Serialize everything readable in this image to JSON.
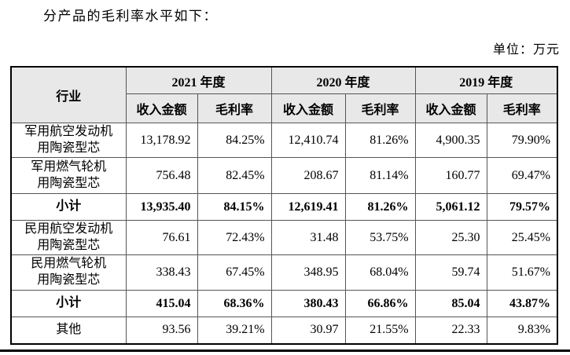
{
  "page": {
    "title": "分产品的毛利率水平如下：",
    "unit_label": "单位：万元"
  },
  "table": {
    "industry_header": "行业",
    "year_groups": [
      {
        "label": "2021 年度"
      },
      {
        "label": "2020 年度"
      },
      {
        "label": "2019 年度"
      }
    ],
    "sub_headers": [
      "收入金额",
      "毛利率"
    ],
    "rows": [
      {
        "industry": "军用航空发动机\n用陶瓷型芯",
        "type": "item",
        "values": [
          "13,178.92",
          "84.25%",
          "12,410.74",
          "81.26%",
          "4,900.35",
          "79.90%"
        ]
      },
      {
        "industry": "军用燃气轮机\n用陶瓷型芯",
        "type": "item",
        "values": [
          "756.48",
          "82.45%",
          "208.67",
          "81.14%",
          "160.77",
          "69.47%"
        ]
      },
      {
        "industry": "小计",
        "type": "subtotal",
        "values": [
          "13,935.40",
          "84.15%",
          "12,619.41",
          "81.26%",
          "5,061.12",
          "79.57%"
        ]
      },
      {
        "industry": "民用航空发动机\n用陶瓷型芯",
        "type": "item",
        "values": [
          "76.61",
          "72.43%",
          "31.48",
          "53.75%",
          "25.30",
          "25.45%"
        ]
      },
      {
        "industry": "民用燃气轮机\n用陶瓷型芯",
        "type": "item",
        "values": [
          "338.43",
          "67.45%",
          "348.95",
          "68.04%",
          "59.74",
          "51.67%"
        ]
      },
      {
        "industry": "小计",
        "type": "subtotal",
        "values": [
          "415.04",
          "68.36%",
          "380.43",
          "66.86%",
          "85.04",
          "43.87%"
        ]
      },
      {
        "industry": "其他",
        "type": "item",
        "values": [
          "93.56",
          "39.21%",
          "30.97",
          "21.55%",
          "22.33",
          "9.83%"
        ]
      }
    ]
  }
}
